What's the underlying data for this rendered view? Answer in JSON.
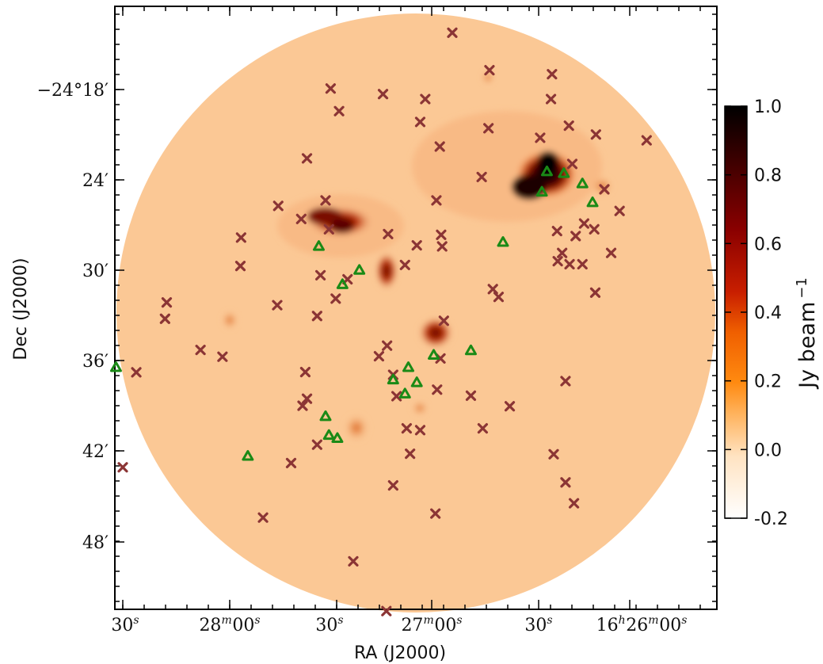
{
  "chart_data": {
    "type": "scatter",
    "background": "radio map (flux density image)",
    "xlabel": "RA (J2000)",
    "ylabel": "Dec (J2000)",
    "x_ticks": [
      {
        "main": "30",
        "sup": "s"
      },
      {
        "main": "28",
        "sup": "m",
        "main2": "00",
        "sup2": "s"
      },
      {
        "main": "30",
        "sup": "s"
      },
      {
        "main": "27",
        "sup": "m",
        "main2": "00",
        "sup2": "s"
      },
      {
        "main": "30",
        "sup": "s"
      },
      {
        "main": "30",
        "sup": "s"
      },
      {
        "main": "16",
        "sup": "h",
        "main2": "26",
        "sup2": "m",
        "main3": "00",
        "sup3": "s"
      }
    ],
    "y_ticks": [
      "−24°18′",
      "24′",
      "30′",
      "36′",
      "42′",
      "48′"
    ],
    "colorbar": {
      "label": "Jy beam",
      "label_exponent": "−1",
      "ticks": [
        "1.0",
        "0.8",
        "0.6",
        "0.4",
        "0.2",
        "0.0",
        "-0.2"
      ],
      "range": [
        -0.2,
        1.0
      ],
      "colormap": "gist_heat_r",
      "colors": [
        "#ffffff",
        "#ffd7a8",
        "#ff9a2e",
        "#ff6a00",
        "#d12200",
        "#8a0000",
        "#3a0000",
        "#000000"
      ]
    },
    "colors": {
      "cross": "#8b3535",
      "triangle": "#1a8a16",
      "map_background": "#fbc895"
    },
    "series": [
      {
        "marker": "x",
        "ra_dec": [
          [
            "16:26:52.5",
            "-24:14:14"
          ],
          [
            "16:26:41.5",
            "-24:16:43"
          ],
          [
            "16:26:23.0",
            "-24:16:59"
          ],
          [
            "16:27:28.5",
            "-24:17:56"
          ],
          [
            "16:27:13.0",
            "-24:18:18"
          ],
          [
            "16:27:00.5",
            "-24:18:38"
          ],
          [
            "16:26:23.3",
            "-24:18:38"
          ],
          [
            "16:27:26.0",
            "-24:19:26"
          ],
          [
            "16:27:02.0",
            "-24:20:09"
          ],
          [
            "16:26:41.8",
            "-24:20:34"
          ],
          [
            "16:26:18.0",
            "-24:20:24"
          ],
          [
            "16:26:10.0",
            "-24:20:59"
          ],
          [
            "16:25:55.0",
            "-24:21:22"
          ],
          [
            "16:26:26.5",
            "-24:21:12"
          ],
          [
            "16:26:56.2",
            "-24:21:47"
          ],
          [
            "16:27:35.5",
            "-24:22:34"
          ],
          [
            "16:26:17.0",
            "-24:22:56"
          ],
          [
            "16:26:43.8",
            "-24:23:48"
          ],
          [
            "16:26:07.5",
            "-24:24:37"
          ],
          [
            "16:27:30.0",
            "-24:25:21"
          ],
          [
            "16:26:57.2",
            "-24:25:21"
          ],
          [
            "16:27:44.0",
            "-24:25:43"
          ],
          [
            "16:26:03.0",
            "-24:26:03"
          ],
          [
            "16:27:37.2",
            "-24:26:35"
          ],
          [
            "16:27:29.0",
            "-24:27:16"
          ],
          [
            "16:27:11.5",
            "-24:27:35"
          ],
          [
            "16:26:55.8",
            "-24:27:38"
          ],
          [
            "16:26:16.0",
            "-24:27:43"
          ],
          [
            "16:27:55.0",
            "-24:27:49"
          ],
          [
            "16:27:03.0",
            "-24:28:20"
          ],
          [
            "16:26:55.5",
            "-24:28:24"
          ],
          [
            "16:26:13.5",
            "-24:26:53"
          ],
          [
            "16:26:10.5",
            "-24:27:16"
          ],
          [
            "16:26:21.5",
            "-24:27:23"
          ],
          [
            "16:26:20.0",
            "-24:28:50"
          ],
          [
            "16:26:17.8",
            "-24:29:35"
          ],
          [
            "16:26:05.5",
            "-24:28:50"
          ],
          [
            "16:26:21.3",
            "-24:29:23"
          ],
          [
            "16:26:14.0",
            "-24:29:35"
          ],
          [
            "16:27:55.2",
            "-24:29:42"
          ],
          [
            "16:27:06.5",
            "-24:29:38"
          ],
          [
            "16:27:23.5",
            "-24:30:35"
          ],
          [
            "16:27:31.5",
            "-24:30:19"
          ],
          [
            "16:26:10.2",
            "-24:31:28"
          ],
          [
            "16:26:40.5",
            "-24:31:14"
          ],
          [
            "16:26:38.8",
            "-24:31:45"
          ],
          [
            "16:27:27.0",
            "-24:31:52"
          ],
          [
            "16:28:17.0",
            "-24:32:07"
          ],
          [
            "16:27:44.3",
            "-24:32:18"
          ],
          [
            "16:28:17.5",
            "-24:33:12"
          ],
          [
            "16:27:32.5",
            "-24:33:01"
          ],
          [
            "16:26:55.0",
            "-24:33:20"
          ],
          [
            "16:27:11.8",
            "-24:34:59"
          ],
          [
            "16:28:07.0",
            "-24:35:16"
          ],
          [
            "16:28:00.5",
            "-24:35:43"
          ],
          [
            "16:27:14.2",
            "-24:35:41"
          ],
          [
            "16:26:56.0",
            "-24:35:50"
          ],
          [
            "16:28:26.0",
            "-24:36:45"
          ],
          [
            "16:27:36.0",
            "-24:36:44"
          ],
          [
            "16:27:10.0",
            "-24:36:55"
          ],
          [
            "16:26:19.0",
            "-24:37:20"
          ],
          [
            "16:26:57.0",
            "-24:37:54"
          ],
          [
            "16:26:47.0",
            "-24:38:18"
          ],
          [
            "16:27:09.0",
            "-24:38:20"
          ],
          [
            "16:27:35.5",
            "-24:38:30"
          ],
          [
            "16:27:36.8",
            "-24:38:58"
          ],
          [
            "16:26:35.5",
            "-24:39:00"
          ],
          [
            "16:27:06.0",
            "-24:40:28"
          ],
          [
            "16:27:02.0",
            "-24:40:35"
          ],
          [
            "16:26:43.5",
            "-24:40:28"
          ],
          [
            "16:27:32.5",
            "-24:41:33"
          ],
          [
            "16:27:05.0",
            "-24:42:09"
          ],
          [
            "16:26:22.5",
            "-24:42:11"
          ],
          [
            "16:27:40.2",
            "-24:42:46"
          ],
          [
            "16:28:30.0",
            "-24:43:03"
          ],
          [
            "16:26:19.0",
            "-24:44:03"
          ],
          [
            "16:27:10.0",
            "-24:44:15"
          ],
          [
            "16:26:16.5",
            "-24:45:26"
          ],
          [
            "16:26:57.5",
            "-24:46:07"
          ],
          [
            "16:27:48.5",
            "-24:46:23"
          ],
          [
            "16:27:21.8",
            "-24:49:17"
          ],
          [
            "16:27:12.0",
            "-24:52:35"
          ]
        ]
      },
      {
        "marker": "triangle",
        "ra_dec": [
          [
            "16:26:24.5",
            "-24:23:26"
          ],
          [
            "16:26:19.5",
            "-24:23:33"
          ],
          [
            "16:26:14.0",
            "-24:24:14"
          ],
          [
            "16:26:26.0",
            "-24:24:47"
          ],
          [
            "16:26:11.0",
            "-24:25:29"
          ],
          [
            "16:26:37.5",
            "-24:28:07"
          ],
          [
            "16:27:32.0",
            "-24:28:23"
          ],
          [
            "16:27:20.0",
            "-24:29:58"
          ],
          [
            "16:27:25.0",
            "-24:30:55"
          ],
          [
            "16:26:47.0",
            "-24:35:18"
          ],
          [
            "16:26:58.0",
            "-24:35:36"
          ],
          [
            "16:28:32.0",
            "-24:36:25"
          ],
          [
            "16:27:05.5",
            "-24:36:25"
          ],
          [
            "16:27:10.0",
            "-24:37:14"
          ],
          [
            "16:27:03.0",
            "-24:37:25"
          ],
          [
            "16:27:06.5",
            "-24:38:10"
          ],
          [
            "16:27:30.0",
            "-24:39:40"
          ],
          [
            "16:27:29.0",
            "-24:40:55"
          ],
          [
            "16:27:26.5",
            "-24:41:07"
          ],
          [
            "16:27:53.0",
            "-24:42:18"
          ]
        ]
      }
    ]
  }
}
